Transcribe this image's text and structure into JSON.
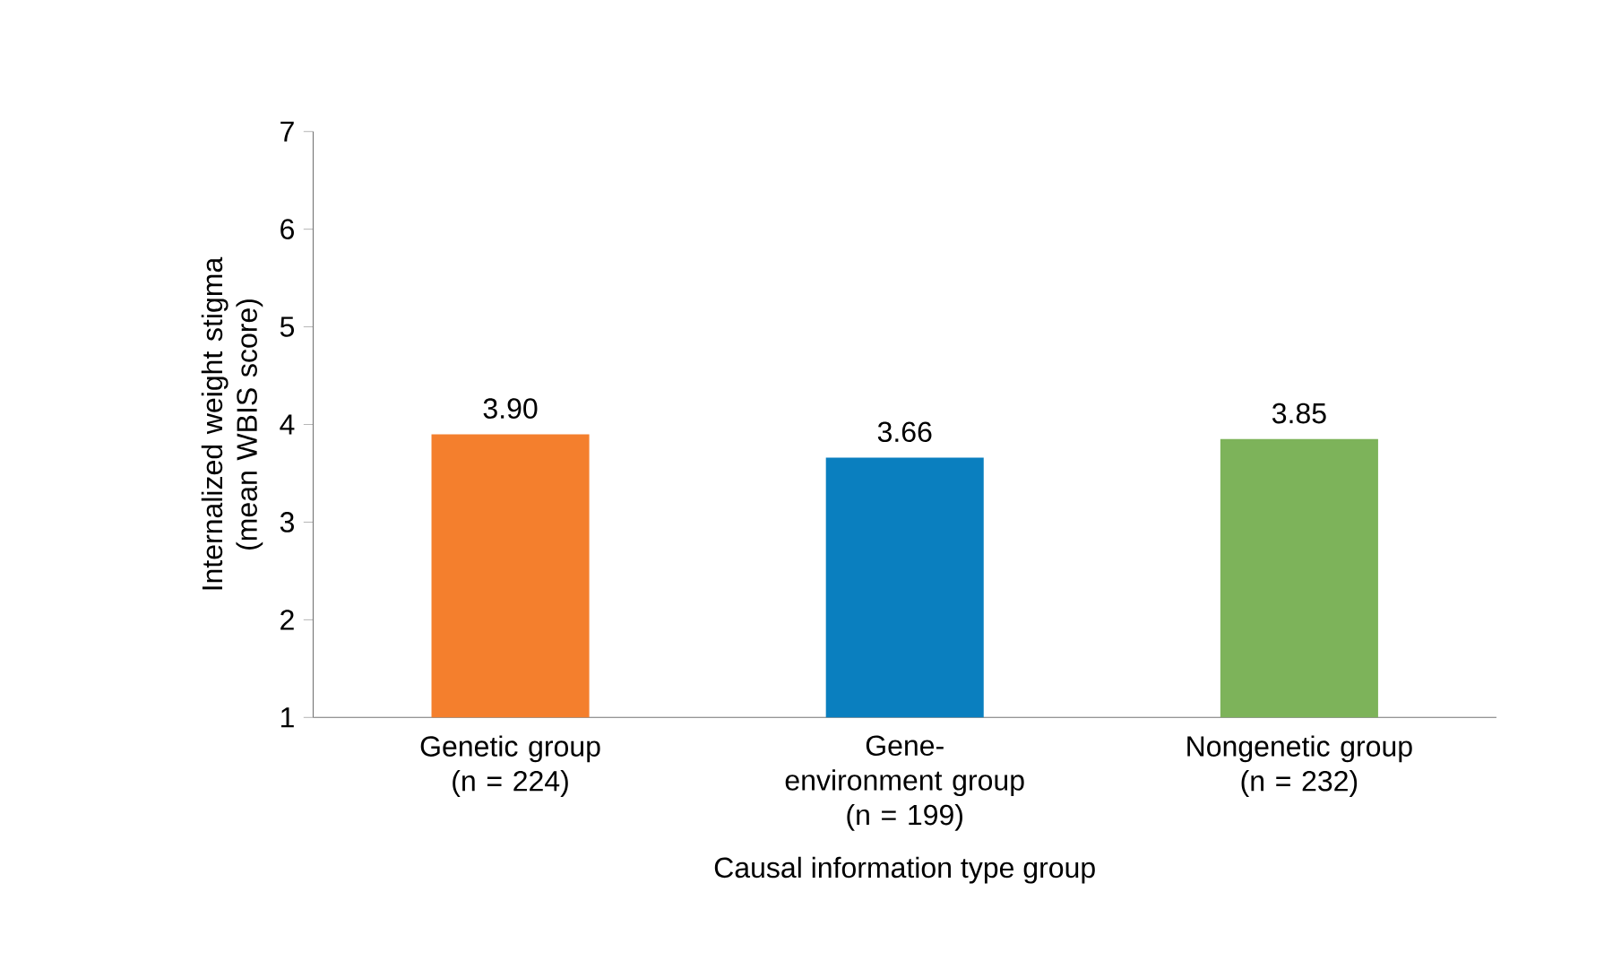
{
  "chart_data": {
    "type": "bar",
    "categories": [
      "Genetic group\n(n = 224)",
      "Gene-environment group\n(n = 199)",
      "Nongenetic group\n(n = 232)"
    ],
    "values": [
      3.9,
      3.66,
      3.85
    ],
    "value_labels": [
      "3.90",
      "3.66",
      "3.85"
    ],
    "colors": [
      "#f47f2d",
      "#0a7fbf",
      "#7db35a"
    ],
    "xlabel": "Causal information type group",
    "ylabel": "Internalized weight stigma\n(mean WBIS score)",
    "ylim": [
      1,
      7
    ],
    "yticks": [
      1,
      2,
      3,
      4,
      5,
      6,
      7
    ],
    "grid": false
  }
}
